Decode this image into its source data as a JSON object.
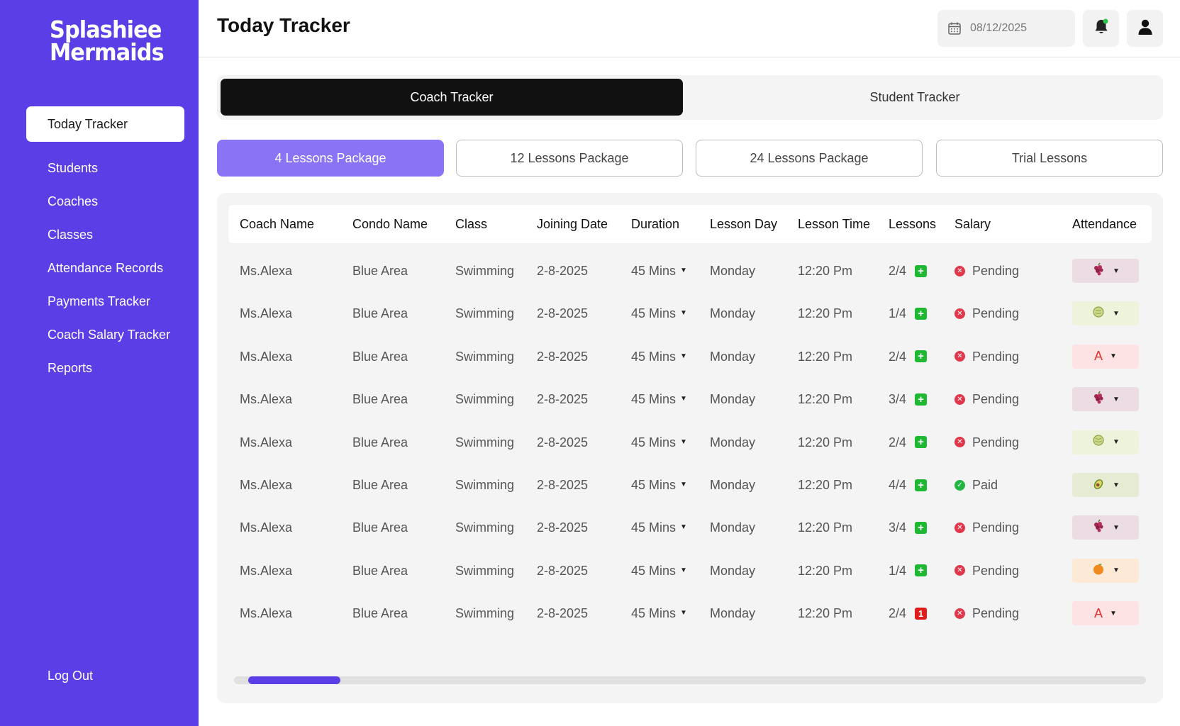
{
  "brand": {
    "line1": "Splashiee",
    "line2": "Mermaids"
  },
  "sidebar": {
    "items": [
      {
        "label": "Today Tracker"
      },
      {
        "label": "Students"
      },
      {
        "label": "Coaches"
      },
      {
        "label": "Classes"
      },
      {
        "label": "Attendance Records"
      },
      {
        "label": "Payments Tracker"
      },
      {
        "label": "Coach Salary Tracker"
      },
      {
        "label": "Reports"
      }
    ],
    "logout": "Log Out"
  },
  "header": {
    "title": "Today Tracker",
    "date_placeholder": "08/12/2025"
  },
  "tracker_toggle": {
    "coach": "Coach Tracker",
    "student": "Student Tracker"
  },
  "packages": [
    {
      "label": "4 Lessons Package"
    },
    {
      "label": "12 Lessons Package"
    },
    {
      "label": "24 Lessons Package"
    },
    {
      "label": "Trial Lessons"
    }
  ],
  "table": {
    "columns": [
      "Coach Name",
      "Condo Name",
      "Class",
      "Joining Date",
      "Duration",
      "Lesson Day",
      "Lesson Time",
      "Lessons",
      "Salary",
      "Attendance"
    ],
    "rows": [
      {
        "coach": "Ms.Alexa",
        "condo": "Blue Area",
        "class": "Swimming",
        "joining": "2-8-2025",
        "duration": "45 Mins",
        "day": "Monday",
        "time": "12:20 Pm",
        "lessons": "2/4",
        "badge": "+",
        "salary": "Pending",
        "attendance": "grape"
      },
      {
        "coach": "Ms.Alexa",
        "condo": "Blue Area",
        "class": "Swimming",
        "joining": "2-8-2025",
        "duration": "45 Mins",
        "day": "Monday",
        "time": "12:20 Pm",
        "lessons": "1/4",
        "badge": "+",
        "salary": "Pending",
        "attendance": "melon"
      },
      {
        "coach": "Ms.Alexa",
        "condo": "Blue Area",
        "class": "Swimming",
        "joining": "2-8-2025",
        "duration": "45 Mins",
        "day": "Monday",
        "time": "12:20 Pm",
        "lessons": "2/4",
        "badge": "+",
        "salary": "Pending",
        "attendance": "A"
      },
      {
        "coach": "Ms.Alexa",
        "condo": "Blue Area",
        "class": "Swimming",
        "joining": "2-8-2025",
        "duration": "45 Mins",
        "day": "Monday",
        "time": "12:20 Pm",
        "lessons": "3/4",
        "badge": "+",
        "salary": "Pending",
        "attendance": "grape"
      },
      {
        "coach": "Ms.Alexa",
        "condo": "Blue Area",
        "class": "Swimming",
        "joining": "2-8-2025",
        "duration": "45 Mins",
        "day": "Monday",
        "time": "12:20 Pm",
        "lessons": "2/4",
        "badge": "+",
        "salary": "Pending",
        "attendance": "melon"
      },
      {
        "coach": "Ms.Alexa",
        "condo": "Blue Area",
        "class": "Swimming",
        "joining": "2-8-2025",
        "duration": "45 Mins",
        "day": "Monday",
        "time": "12:20 Pm",
        "lessons": "4/4",
        "badge": "+",
        "salary": "Paid",
        "attendance": "avocado"
      },
      {
        "coach": "Ms.Alexa",
        "condo": "Blue Area",
        "class": "Swimming",
        "joining": "2-8-2025",
        "duration": "45 Mins",
        "day": "Monday",
        "time": "12:20 Pm",
        "lessons": "3/4",
        "badge": "+",
        "salary": "Pending",
        "attendance": "grape"
      },
      {
        "coach": "Ms.Alexa",
        "condo": "Blue Area",
        "class": "Swimming",
        "joining": "2-8-2025",
        "duration": "45 Mins",
        "day": "Monday",
        "time": "12:20 Pm",
        "lessons": "1/4",
        "badge": "+",
        "salary": "Pending",
        "attendance": "orange"
      },
      {
        "coach": "Ms.Alexa",
        "condo": "Blue Area",
        "class": "Swimming",
        "joining": "2-8-2025",
        "duration": "45 Mins",
        "day": "Monday",
        "time": "12:20 Pm",
        "lessons": "2/4",
        "badge": "1",
        "salary": "Pending",
        "attendance": "A"
      }
    ]
  },
  "colors": {
    "sidebar": "#5b3ee6",
    "active_package": "#8a74f5",
    "plus_badge": "#1fb832",
    "alert_badge": "#e01b1b",
    "pending": "#e0384a",
    "paid": "#23b640"
  },
  "icons": {
    "date": "calendar-icon",
    "notifications": "bell-icon",
    "profile": "user-icon"
  }
}
